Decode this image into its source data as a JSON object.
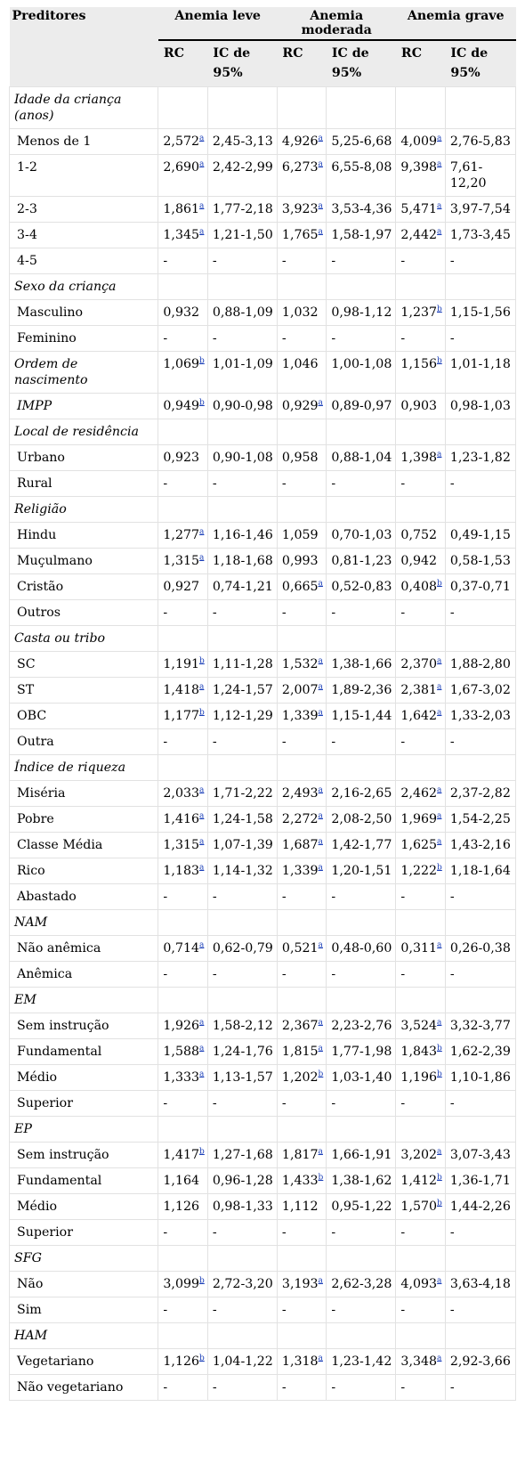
{
  "header": {
    "predictors_label": "Preditores",
    "groups": [
      "Anemia leve",
      "Anemia moderada",
      "Anemia grave"
    ],
    "sub": [
      "RC",
      "IC de 95%",
      "RC",
      "IC de 95%",
      "RC",
      "IC de 95%"
    ]
  },
  "rows": [
    {
      "type": "section",
      "label": "Idade da criança (anos)"
    },
    {
      "type": "data",
      "label": "Menos de 1",
      "cells": [
        [
          "2,572",
          "a"
        ],
        [
          "2,45-3,13",
          ""
        ],
        [
          "4,926",
          "a"
        ],
        [
          "5,25-6,68",
          ""
        ],
        [
          "4,009",
          "a"
        ],
        [
          "2,76-5,83",
          ""
        ]
      ]
    },
    {
      "type": "data",
      "label": "1-2",
      "cells": [
        [
          "2,690",
          "a"
        ],
        [
          "2,42-2,99",
          ""
        ],
        [
          "6,273",
          "a"
        ],
        [
          "6,55-8,08",
          ""
        ],
        [
          "9,398",
          "a"
        ],
        [
          "7,61-12,20",
          ""
        ]
      ]
    },
    {
      "type": "data",
      "label": "2-3",
      "cells": [
        [
          "1,861",
          "a"
        ],
        [
          "1,77-2,18",
          ""
        ],
        [
          "3,923",
          "a"
        ],
        [
          "3,53-4,36",
          ""
        ],
        [
          "5,471",
          "a"
        ],
        [
          "3,97-7,54",
          ""
        ]
      ]
    },
    {
      "type": "data",
      "label": "3-4",
      "cells": [
        [
          "1,345",
          "a"
        ],
        [
          "1,21-1,50",
          ""
        ],
        [
          "1,765",
          "a"
        ],
        [
          "1,58-1,97",
          ""
        ],
        [
          "2,442",
          "a"
        ],
        [
          "1,73-3,45",
          ""
        ]
      ]
    },
    {
      "type": "data",
      "label": "4-5",
      "cells": [
        [
          "-",
          ""
        ],
        [
          "-",
          ""
        ],
        [
          "-",
          ""
        ],
        [
          "-",
          ""
        ],
        [
          "-",
          ""
        ],
        [
          "-",
          ""
        ]
      ]
    },
    {
      "type": "section",
      "label": "Sexo da criança"
    },
    {
      "type": "data",
      "label": "Masculino",
      "cells": [
        [
          "0,932",
          ""
        ],
        [
          "0,88-1,09",
          ""
        ],
        [
          "1,032",
          ""
        ],
        [
          "0,98-1,12",
          ""
        ],
        [
          "1,237",
          "b"
        ],
        [
          "1,15-1,56",
          ""
        ]
      ]
    },
    {
      "type": "data",
      "label": "Feminino",
      "cells": [
        [
          "-",
          ""
        ],
        [
          "-",
          ""
        ],
        [
          "-",
          ""
        ],
        [
          "-",
          ""
        ],
        [
          "-",
          ""
        ],
        [
          "-",
          ""
        ]
      ]
    },
    {
      "type": "italicdata",
      "label": "Ordem de nascimento",
      "cells": [
        [
          "1,069",
          "b"
        ],
        [
          "1,01-1,09",
          ""
        ],
        [
          "1,046",
          ""
        ],
        [
          "1,00-1,08",
          ""
        ],
        [
          "1,156",
          "b"
        ],
        [
          "1,01-1,18",
          ""
        ]
      ]
    },
    {
      "type": "italicdata2",
      "label": "IMPP",
      "cells": [
        [
          "0,949",
          "b"
        ],
        [
          "0,90-0,98",
          ""
        ],
        [
          "0,929",
          "a"
        ],
        [
          "0,89-0,97",
          ""
        ],
        [
          "0,903",
          ""
        ],
        [
          "0,98-1,03",
          ""
        ]
      ]
    },
    {
      "type": "section",
      "label": "Local de residência"
    },
    {
      "type": "data",
      "label": "Urbano",
      "cells": [
        [
          "0,923",
          ""
        ],
        [
          "0,90-1,08",
          ""
        ],
        [
          "0,958",
          ""
        ],
        [
          "0,88-1,04",
          ""
        ],
        [
          "1,398",
          "a"
        ],
        [
          "1,23-1,82",
          ""
        ]
      ]
    },
    {
      "type": "data",
      "label": "Rural",
      "cells": [
        [
          "-",
          ""
        ],
        [
          "-",
          ""
        ],
        [
          "-",
          ""
        ],
        [
          "-",
          ""
        ],
        [
          "-",
          ""
        ],
        [
          "-",
          ""
        ]
      ]
    },
    {
      "type": "section",
      "label": "Religião"
    },
    {
      "type": "data",
      "label": "Hindu",
      "cells": [
        [
          "1,277",
          "a"
        ],
        [
          "1,16-1,46",
          ""
        ],
        [
          "1,059",
          ""
        ],
        [
          "0,70-1,03",
          ""
        ],
        [
          "0,752",
          ""
        ],
        [
          "0,49-1,15",
          ""
        ]
      ]
    },
    {
      "type": "data",
      "label": "Muçulmano",
      "cells": [
        [
          "1,315",
          "a"
        ],
        [
          "1,18-1,68",
          ""
        ],
        [
          "0,993",
          ""
        ],
        [
          "0,81-1,23",
          ""
        ],
        [
          "0,942",
          ""
        ],
        [
          "0,58-1,53",
          ""
        ]
      ]
    },
    {
      "type": "data",
      "label": "Cristão",
      "cells": [
        [
          "0,927",
          ""
        ],
        [
          "0,74-1,21",
          ""
        ],
        [
          "0,665",
          "a"
        ],
        [
          "0,52-0,83",
          ""
        ],
        [
          "0,408",
          "b"
        ],
        [
          "0,37-0,71",
          ""
        ]
      ]
    },
    {
      "type": "data",
      "label": "Outros",
      "cells": [
        [
          "-",
          ""
        ],
        [
          "-",
          ""
        ],
        [
          "-",
          ""
        ],
        [
          "-",
          ""
        ],
        [
          "-",
          ""
        ],
        [
          "-",
          ""
        ]
      ]
    },
    {
      "type": "section",
      "label": "Casta ou tribo"
    },
    {
      "type": "data",
      "label": "SC",
      "cells": [
        [
          "1,191",
          "b"
        ],
        [
          "1,11-1,28",
          ""
        ],
        [
          "1,532",
          "a"
        ],
        [
          "1,38-1,66",
          ""
        ],
        [
          "2,370",
          "a"
        ],
        [
          "1,88-2,80",
          ""
        ]
      ]
    },
    {
      "type": "data",
      "label": "ST",
      "cells": [
        [
          "1,418",
          "a"
        ],
        [
          "1,24-1,57",
          ""
        ],
        [
          "2,007",
          "a"
        ],
        [
          "1,89-2,36",
          ""
        ],
        [
          "2,381",
          "a"
        ],
        [
          "1,67-3,02",
          ""
        ]
      ]
    },
    {
      "type": "data",
      "label": "OBC",
      "cells": [
        [
          "1,177",
          "b"
        ],
        [
          "1,12-1,29",
          ""
        ],
        [
          "1,339",
          "a"
        ],
        [
          "1,15-1,44",
          ""
        ],
        [
          "1,642",
          "a"
        ],
        [
          "1,33-2,03",
          ""
        ]
      ]
    },
    {
      "type": "data",
      "label": "Outra",
      "cells": [
        [
          "-",
          ""
        ],
        [
          "-",
          ""
        ],
        [
          "-",
          ""
        ],
        [
          "-",
          ""
        ],
        [
          "-",
          ""
        ],
        [
          "-",
          ""
        ]
      ]
    },
    {
      "type": "section",
      "label": "Índice de riqueza"
    },
    {
      "type": "data",
      "label": "Miséria",
      "cells": [
        [
          "2,033",
          "a"
        ],
        [
          "1,71-2,22",
          ""
        ],
        [
          "2,493",
          "a"
        ],
        [
          "2,16-2,65",
          ""
        ],
        [
          "2,462",
          "a"
        ],
        [
          "2,37-2,82",
          ""
        ]
      ]
    },
    {
      "type": "data",
      "label": "Pobre",
      "cells": [
        [
          "1,416",
          "a"
        ],
        [
          "1,24-1,58",
          ""
        ],
        [
          "2,272",
          "a"
        ],
        [
          "2,08-2,50",
          ""
        ],
        [
          "1,969",
          "a"
        ],
        [
          "1,54-2,25",
          ""
        ]
      ]
    },
    {
      "type": "data",
      "label": "Classe Média",
      "cells": [
        [
          "1,315",
          "a"
        ],
        [
          "1,07-1,39",
          ""
        ],
        [
          "1,687",
          "a"
        ],
        [
          "1,42-1,77",
          ""
        ],
        [
          "1,625",
          "a"
        ],
        [
          "1,43-2,16",
          ""
        ]
      ]
    },
    {
      "type": "data",
      "label": "Rico",
      "cells": [
        [
          "1,183",
          "a"
        ],
        [
          "1,14-1,32",
          ""
        ],
        [
          "1,339",
          "a"
        ],
        [
          "1,20-1,51",
          ""
        ],
        [
          "1,222",
          "b"
        ],
        [
          "1,18-1,64",
          ""
        ]
      ]
    },
    {
      "type": "data",
      "label": "Abastado",
      "cells": [
        [
          "-",
          ""
        ],
        [
          "-",
          ""
        ],
        [
          "-",
          ""
        ],
        [
          "-",
          ""
        ],
        [
          "-",
          ""
        ],
        [
          "-",
          ""
        ]
      ]
    },
    {
      "type": "section",
      "label": "NAM"
    },
    {
      "type": "data",
      "label": "Não anêmica",
      "cells": [
        [
          "0,714",
          "a"
        ],
        [
          "0,62-0,79",
          ""
        ],
        [
          "0,521",
          "a"
        ],
        [
          "0,48-0,60",
          ""
        ],
        [
          "0,311",
          "a"
        ],
        [
          "0,26-0,38",
          ""
        ]
      ]
    },
    {
      "type": "data",
      "label": "Anêmica",
      "cells": [
        [
          "-",
          ""
        ],
        [
          "-",
          ""
        ],
        [
          "-",
          ""
        ],
        [
          "-",
          ""
        ],
        [
          "-",
          ""
        ],
        [
          "-",
          ""
        ]
      ]
    },
    {
      "type": "section",
      "label": "EM"
    },
    {
      "type": "data",
      "label": "Sem instrução",
      "cells": [
        [
          "1,926",
          "a"
        ],
        [
          "1,58-2,12",
          ""
        ],
        [
          "2,367",
          "a"
        ],
        [
          "2,23-2,76",
          ""
        ],
        [
          "3,524",
          "a"
        ],
        [
          "3,32-3,77",
          ""
        ]
      ]
    },
    {
      "type": "data",
      "label": "Fundamental",
      "cells": [
        [
          "1,588",
          "a"
        ],
        [
          "1,24-1,76",
          ""
        ],
        [
          "1,815",
          "a"
        ],
        [
          "1,77-1,98",
          ""
        ],
        [
          "1,843",
          "b"
        ],
        [
          "1,62-2,39",
          ""
        ]
      ]
    },
    {
      "type": "data",
      "label": "Médio",
      "cells": [
        [
          "1,333",
          "a"
        ],
        [
          "1,13-1,57",
          ""
        ],
        [
          "1,202",
          "b"
        ],
        [
          "1,03-1,40",
          ""
        ],
        [
          "1,196",
          "b"
        ],
        [
          "1,10-1,86",
          ""
        ]
      ]
    },
    {
      "type": "data",
      "label": "Superior",
      "cells": [
        [
          "-",
          ""
        ],
        [
          "-",
          ""
        ],
        [
          "-",
          ""
        ],
        [
          "-",
          ""
        ],
        [
          "-",
          ""
        ],
        [
          "-",
          ""
        ]
      ]
    },
    {
      "type": "section",
      "label": "EP"
    },
    {
      "type": "data",
      "label": "Sem instrução",
      "cells": [
        [
          "1,417",
          "b"
        ],
        [
          "1,27-1,68",
          ""
        ],
        [
          "1,817",
          "a"
        ],
        [
          "1,66-1,91",
          ""
        ],
        [
          "3,202",
          "a"
        ],
        [
          "3,07-3,43",
          ""
        ]
      ]
    },
    {
      "type": "data",
      "label": "Fundamental",
      "cells": [
        [
          "1,164",
          ""
        ],
        [
          "0,96-1,28",
          ""
        ],
        [
          "1,433",
          "b"
        ],
        [
          "1,38-1,62",
          ""
        ],
        [
          "1,412",
          "b"
        ],
        [
          "1,36-1,71",
          ""
        ]
      ]
    },
    {
      "type": "data",
      "label": "Médio",
      "cells": [
        [
          "1,126",
          ""
        ],
        [
          "0,98-1,33",
          ""
        ],
        [
          "1,112",
          ""
        ],
        [
          "0,95-1,22",
          ""
        ],
        [
          "1,570",
          "b"
        ],
        [
          "1,44-2,26",
          ""
        ]
      ]
    },
    {
      "type": "data",
      "label": "Superior",
      "cells": [
        [
          "-",
          ""
        ],
        [
          "-",
          ""
        ],
        [
          "-",
          ""
        ],
        [
          "-",
          ""
        ],
        [
          "-",
          ""
        ],
        [
          "-",
          ""
        ]
      ]
    },
    {
      "type": "section",
      "label": "SFG"
    },
    {
      "type": "data",
      "label": "Não",
      "cells": [
        [
          "3,099",
          "b"
        ],
        [
          "2,72-3,20",
          ""
        ],
        [
          "3,193",
          "a"
        ],
        [
          "2,62-3,28",
          ""
        ],
        [
          "4,093",
          "a"
        ],
        [
          "3,63-4,18",
          ""
        ]
      ]
    },
    {
      "type": "data",
      "label": "Sim",
      "cells": [
        [
          "-",
          ""
        ],
        [
          "-",
          ""
        ],
        [
          "-",
          ""
        ],
        [
          "-",
          ""
        ],
        [
          "-",
          ""
        ],
        [
          "-",
          ""
        ]
      ]
    },
    {
      "type": "section",
      "label": "HAM"
    },
    {
      "type": "data",
      "label": "Vegetariano",
      "cells": [
        [
          "1,126",
          "b"
        ],
        [
          "1,04-1,22",
          ""
        ],
        [
          "1,318",
          "a"
        ],
        [
          "1,23-1,42",
          ""
        ],
        [
          "3,348",
          "a"
        ],
        [
          "2,92-3,66",
          ""
        ]
      ]
    },
    {
      "type": "data",
      "label": "Não vegetariano",
      "cells": [
        [
          "-",
          ""
        ],
        [
          "-",
          ""
        ],
        [
          "-",
          ""
        ],
        [
          "-",
          ""
        ],
        [
          "-",
          ""
        ],
        [
          "-",
          ""
        ]
      ]
    }
  ]
}
